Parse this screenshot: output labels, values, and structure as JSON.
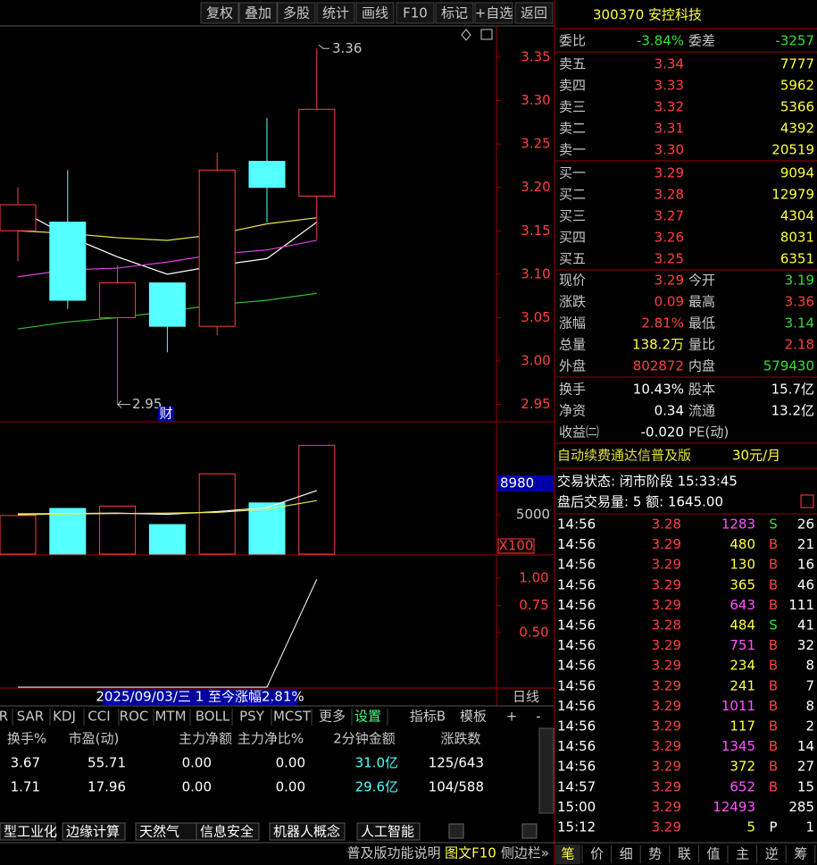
{
  "toolbar": [
    "复权",
    "叠加",
    "多股",
    "统计",
    "画线",
    "F10",
    "标记",
    "+自选",
    "返回"
  ],
  "kline": {
    "ylim": [
      2.93,
      3.385
    ],
    "yticks": [
      3.35,
      {
        "value": 3.3,
        "label": "3.30"
      },
      3.25,
      {
        "value": 3.2,
        "label": "3.20"
      },
      3.15,
      {
        "value": 3.1,
        "label": "3.10"
      },
      3.05,
      {
        "value": 3.0,
        "label": "3.00"
      },
      2.95
    ],
    "candles": [
      {
        "open": 3.15,
        "high": 3.2,
        "low": 3.115,
        "close": 3.18
      },
      {
        "open": 3.16,
        "high": 3.22,
        "low": 3.06,
        "close": 3.07
      },
      {
        "open": 3.05,
        "high": 3.11,
        "low": 2.95,
        "close": 3.09
      },
      {
        "open": 3.09,
        "high": 3.09,
        "low": 3.01,
        "close": 3.04
      },
      {
        "open": 3.04,
        "high": 3.24,
        "low": 3.03,
        "close": 3.22
      },
      {
        "open": 3.23,
        "high": 3.28,
        "low": 3.16,
        "close": 3.2
      },
      {
        "open": 3.19,
        "high": 3.36,
        "low": 3.14,
        "close": 3.29
      }
    ],
    "ma": [
      {
        "color": "#ffffff",
        "values": [
          3.175,
          3.144,
          3.12,
          3.1,
          3.11,
          3.118,
          3.16
        ]
      },
      {
        "color": "#e8e84c",
        "values": [
          3.15,
          3.147,
          3.142,
          3.139,
          3.146,
          3.158,
          3.165
        ]
      },
      {
        "color": "#e040e0",
        "values": [
          3.097,
          3.105,
          3.107,
          3.114,
          3.123,
          3.128,
          3.139
        ]
      },
      {
        "color": "#30c030",
        "values": [
          3.037,
          3.045,
          3.05,
          3.057,
          3.065,
          3.07,
          3.078
        ]
      }
    ],
    "high_label": 3.36,
    "low_label": 2.95,
    "event_marker": "财"
  },
  "volume": {
    "ylim": [
      0,
      16590
    ],
    "yticks": [
      5000
    ],
    "cursor_label": 8980,
    "unit": "X100",
    "values": [
      4900,
      5800,
      6100,
      3750,
      10200,
      6500,
      13820
    ],
    "ma": [
      {
        "color": "#ffffff",
        "values": [
          5100,
          5150,
          5200,
          5050,
          5400,
          5900,
          8070
        ]
      },
      {
        "color": "#e8e84c",
        "values": [
          5000,
          5100,
          5150,
          5200,
          5300,
          5700,
          6800
        ]
      }
    ]
  },
  "indicator": {
    "ylim": [
      0,
      1.205
    ],
    "yticks": [
      {
        "value": 1,
        "label": "1.00"
      },
      0.75,
      {
        "value": 0.5,
        "label": "0.50"
      }
    ],
    "values": [
      0,
      0,
      0,
      0,
      0,
      0,
      0.99
    ]
  },
  "range_info": "2025/09/03/三 1 至今涨幅2.81%",
  "period": "日线",
  "indicator_tabs": [
    "R",
    "SAR",
    "KDJ",
    "CCI",
    "ROC",
    "MTM",
    "BOLL",
    "PSY",
    "MCST",
    "更多",
    "设置"
  ],
  "indicator_tools": [
    "指标B",
    "模板",
    "+",
    "-"
  ],
  "stats_table": {
    "header": [
      "换手%",
      "市盈(动)",
      "主力净额",
      "主力净比%",
      "2分钟金额",
      "涨跌数"
    ],
    "rows": [
      [
        "3.67",
        "55.71",
        "0.00",
        "0.00",
        "31.0亿",
        "125/643"
      ],
      [
        "1.71",
        "17.96",
        "0.00",
        "0.00",
        "29.6亿",
        "104/588"
      ]
    ]
  },
  "sector_tabs": [
    "型工业化",
    "边缘计算",
    "天然气",
    "信息安全",
    "机器人概念",
    "人工智能"
  ],
  "bottom_links": [
    "普及版功能说明",
    "图文F10",
    "侧边栏»"
  ],
  "quote": {
    "title": "300370 安控科技",
    "ratio": [
      "委比",
      "-3.84%",
      "委差",
      "-3257"
    ],
    "asks": [
      [
        "卖五",
        "3.34",
        "7777"
      ],
      [
        "卖四",
        "3.33",
        "5962"
      ],
      [
        "卖三",
        "3.32",
        "5366"
      ],
      [
        "卖二",
        "3.31",
        "4392"
      ],
      [
        "卖一",
        "3.30",
        "20519"
      ]
    ],
    "bids": [
      [
        "买一",
        "3.29",
        "9094"
      ],
      [
        "买二",
        "3.28",
        "12979"
      ],
      [
        "买三",
        "3.27",
        "4304"
      ],
      [
        "买四",
        "3.26",
        "8031"
      ],
      [
        "买五",
        "3.25",
        "6351"
      ]
    ],
    "stats": [
      [
        "现价",
        "3.29",
        "今开",
        "3.19"
      ],
      [
        "涨跌",
        "0.09",
        "最高",
        "3.36"
      ],
      [
        "涨幅",
        "2.81%",
        "最低",
        "3.14"
      ],
      [
        "总量",
        "138.2万",
        "量比",
        "2.18"
      ],
      [
        "外盘",
        "802872",
        "内盘",
        "579430"
      ]
    ],
    "extra": [
      [
        "换手",
        "10.43%",
        "股本",
        "15.7亿"
      ],
      [
        "净资",
        "0.34",
        "流通",
        "13.2亿"
      ],
      [
        "收益㈡",
        "-0.020",
        "PE(动)"
      ]
    ],
    "promo": [
      "自动续费通达信普及版",
      "30元/月"
    ],
    "status": "交易状态: 闭市阶段 15:33:45",
    "after_hours": "盘后交易量: 5 额: 1645.00",
    "ticks": [
      [
        "14:56",
        "3.28",
        "1283",
        "S",
        "26"
      ],
      [
        "14:56",
        "3.29",
        "480",
        "B",
        "21"
      ],
      [
        "14:56",
        "3.29",
        "130",
        "B",
        "16"
      ],
      [
        "14:56",
        "3.29",
        "365",
        "B",
        "46"
      ],
      [
        "14:56",
        "3.29",
        "643",
        "B",
        "111"
      ],
      [
        "14:56",
        "3.28",
        "484",
        "S",
        "41"
      ],
      [
        "14:56",
        "3.29",
        "751",
        "B",
        "32"
      ],
      [
        "14:56",
        "3.29",
        "234",
        "B",
        "8"
      ],
      [
        "14:56",
        "3.29",
        "241",
        "B",
        "7"
      ],
      [
        "14:56",
        "3.29",
        "1011",
        "B",
        "8"
      ],
      [
        "14:56",
        "3.29",
        "117",
        "B",
        "2"
      ],
      [
        "14:56",
        "3.29",
        "1345",
        "B",
        "14"
      ],
      [
        "14:56",
        "3.29",
        "372",
        "B",
        "27"
      ],
      [
        "14:57",
        "3.29",
        "652",
        "B",
        "15"
      ],
      [
        "15:00",
        "3.29",
        "12493",
        null,
        "285"
      ],
      [
        "15:12",
        "3.29",
        "5",
        "P",
        "1"
      ]
    ],
    "tabs": [
      "笔",
      "价",
      "细",
      "势",
      "联",
      "值",
      "主",
      "逆",
      "筹"
    ]
  }
}
